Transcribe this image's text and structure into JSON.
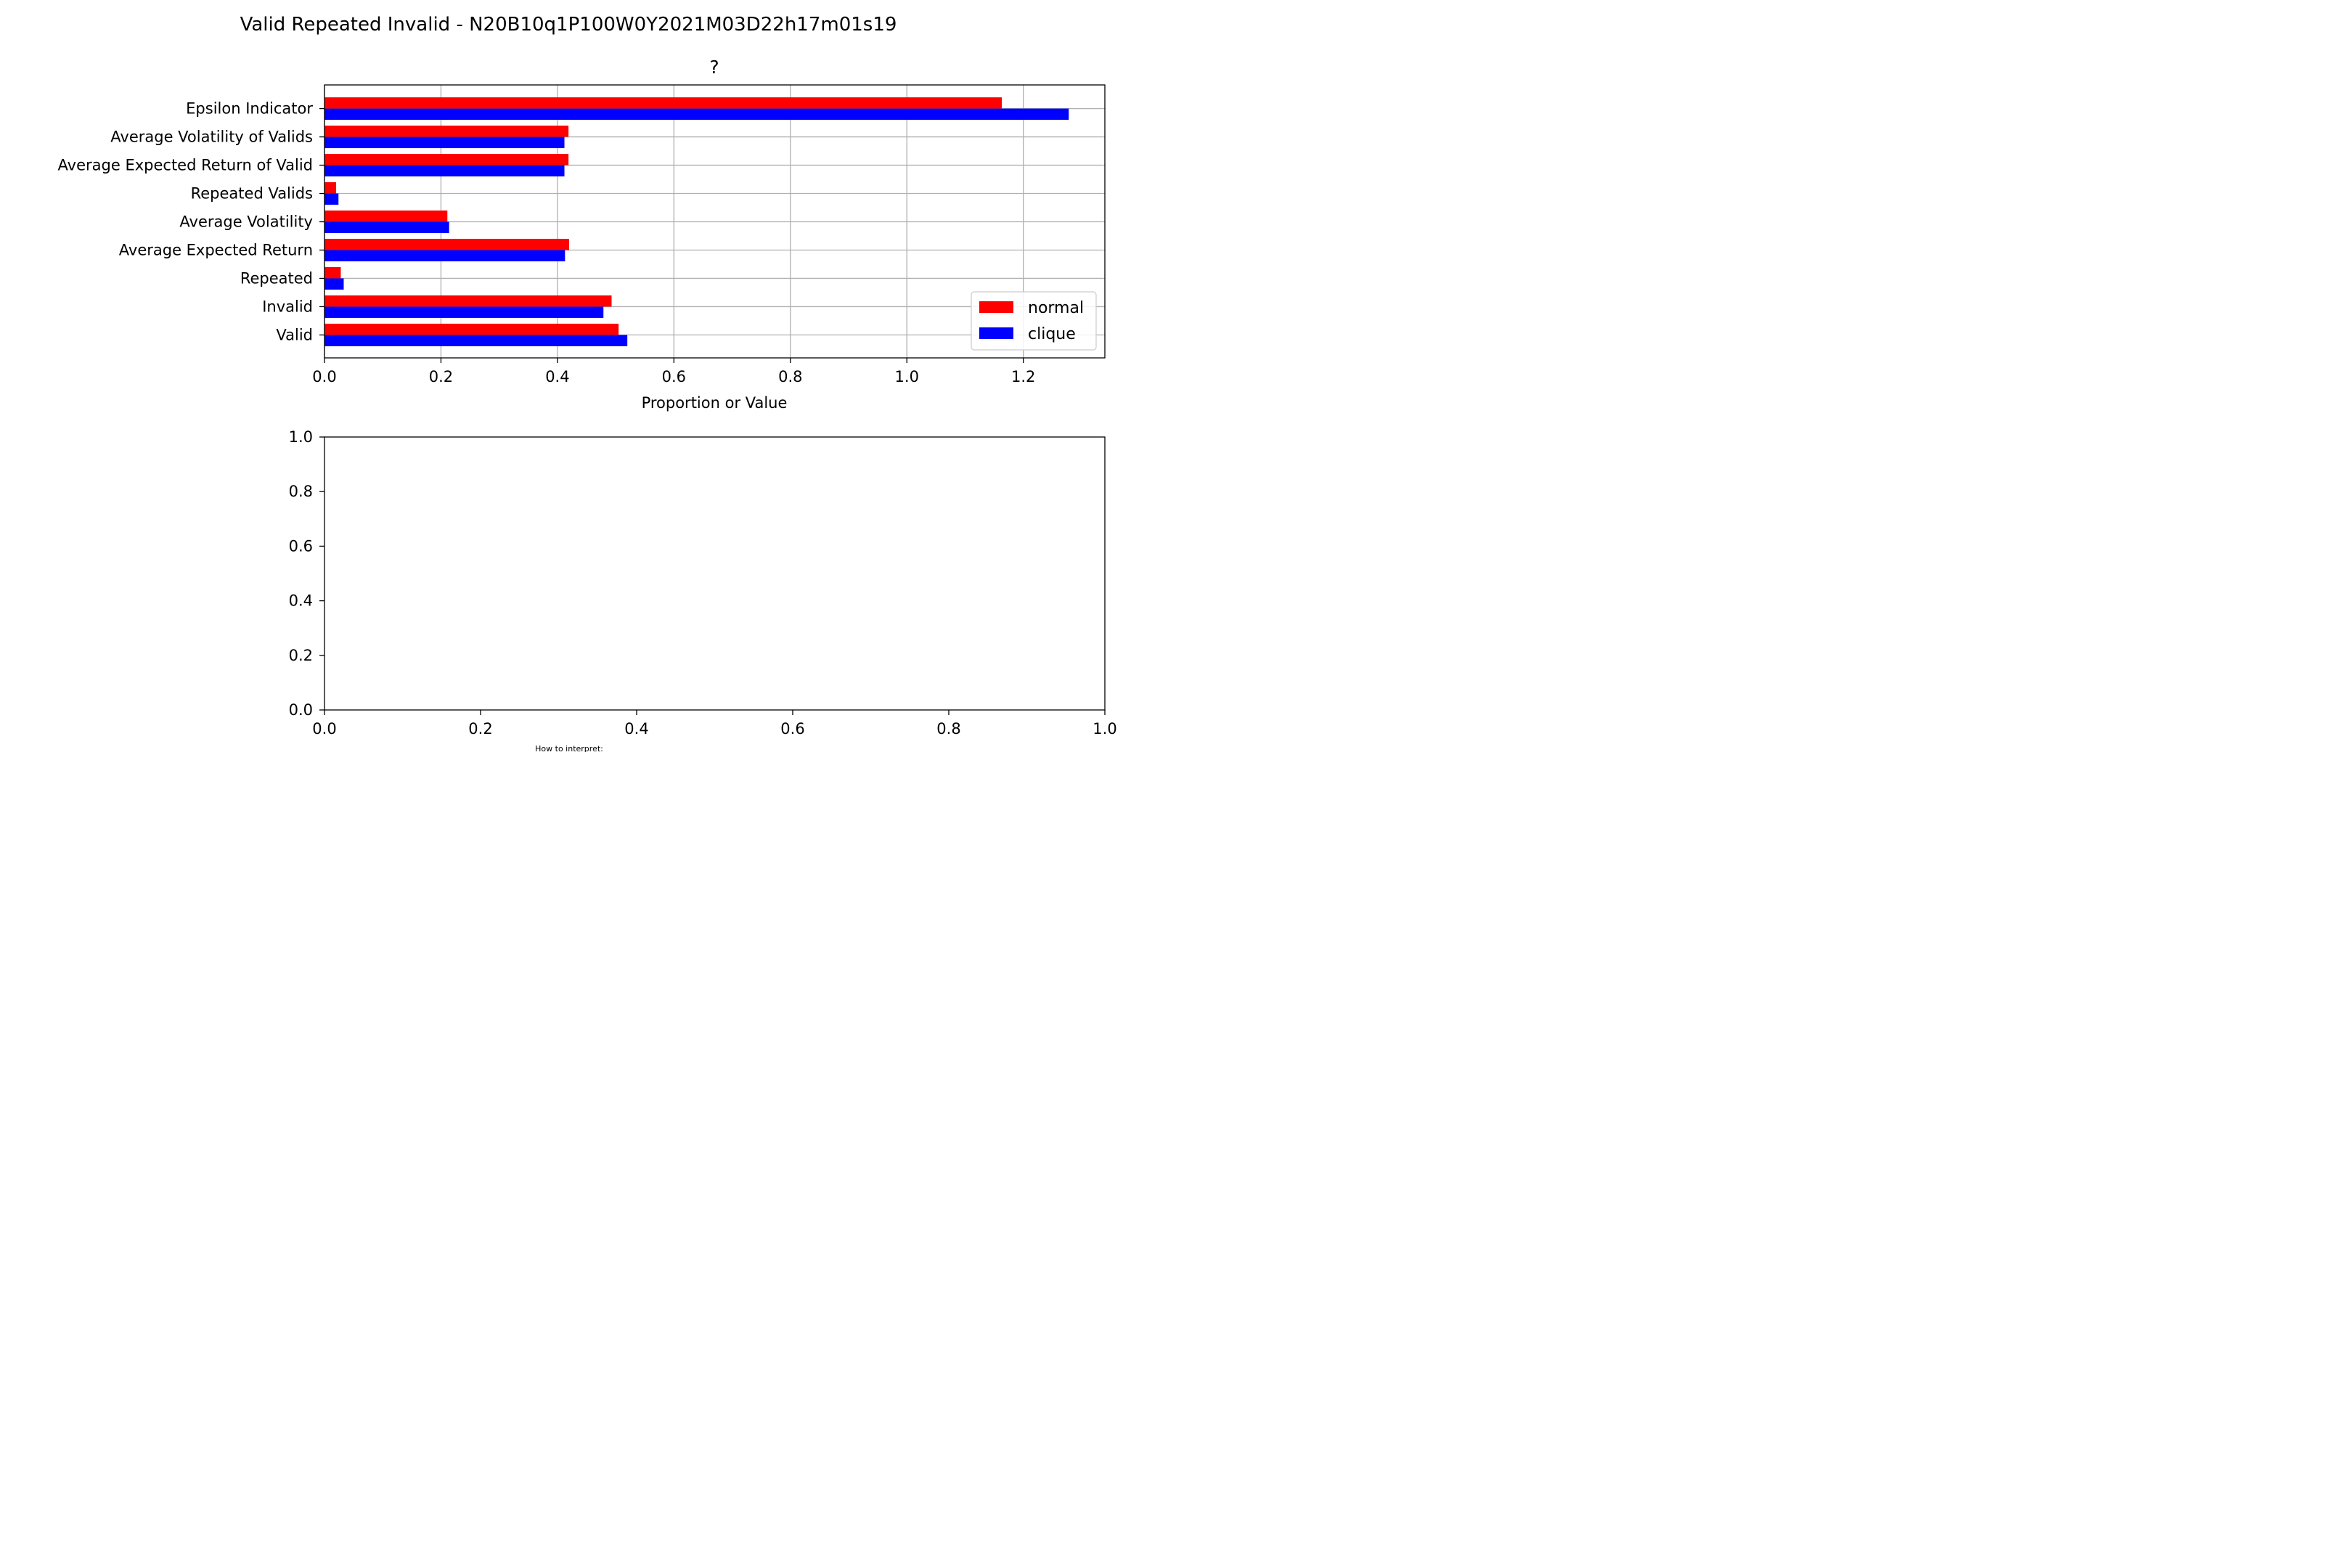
{
  "figure": {
    "title": "Valid Repeated Invalid - N20B10q1P100W0Y2021M03D22h17m01s19",
    "footnote": "How to interpret:"
  },
  "colors": {
    "normal": "#ff0000",
    "clique": "#0000ff",
    "grid": "#b0b0b0",
    "axis": "#000000"
  },
  "chart_data": [
    {
      "type": "bar",
      "orientation": "horizontal",
      "title": "?",
      "xlabel": "Proportion or Value",
      "ylabel": "",
      "xlim": [
        0,
        1.34
      ],
      "xticks": [
        "0.0",
        "0.2",
        "0.4",
        "0.6",
        "0.8",
        "1.0",
        "1.2"
      ],
      "xtick_values": [
        0.0,
        0.2,
        0.4,
        0.6,
        0.8,
        1.0,
        1.2
      ],
      "grid": true,
      "legend_position": "lower-right",
      "categories": [
        "Valid",
        "Invalid",
        "Repeated",
        "Average Expected Return",
        "Average Volatility",
        "Repeated Valids",
        "Average Expected Return of Valid",
        "Average Volatility of Valids",
        "Epsilon Indicator"
      ],
      "series": [
        {
          "name": "normal",
          "values": [
            0.505,
            0.493,
            0.028,
            0.42,
            0.211,
            0.02,
            0.419,
            0.419,
            1.163
          ]
        },
        {
          "name": "clique",
          "values": [
            0.52,
            0.479,
            0.033,
            0.413,
            0.214,
            0.024,
            0.412,
            0.412,
            1.278
          ]
        }
      ]
    },
    {
      "type": "empty",
      "title": "",
      "xlabel": "",
      "ylabel": "",
      "xlim": [
        0,
        1
      ],
      "ylim": [
        0,
        1
      ],
      "xticks": [
        "0.0",
        "0.2",
        "0.4",
        "0.6",
        "0.8",
        "1.0"
      ],
      "yticks": [
        "0.0",
        "0.2",
        "0.4",
        "0.6",
        "0.8",
        "1.0"
      ]
    }
  ]
}
